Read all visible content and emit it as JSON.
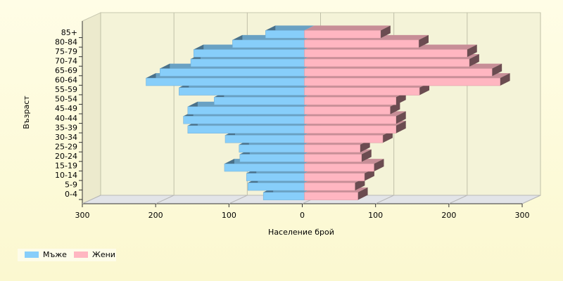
{
  "chart_data": {
    "type": "pyramid",
    "y_label": "Възраст",
    "x_label": "Население брой",
    "categories": [
      "0-4",
      "5-9",
      "10-14",
      "15-19",
      "20-24",
      "25-29",
      "30-34",
      "35-39",
      "40-44",
      "45-49",
      "50-54",
      "55-59",
      "60-64",
      "65-69",
      "70-74",
      "75-79",
      "80-84",
      "85+"
    ],
    "series": [
      {
        "name": "Мъже",
        "color": "#87cefa",
        "values": [
          -56,
          -77,
          -79,
          -109,
          -88,
          -89,
          -108,
          -159,
          -165,
          -159,
          -123,
          -171,
          -216,
          -197,
          -155,
          -151,
          -98,
          -53
        ]
      },
      {
        "name": "Жени",
        "color": "#ffb6c1",
        "values": [
          73,
          69,
          82,
          95,
          78,
          76,
          107,
          125,
          125,
          117,
          125,
          157,
          267,
          256,
          225,
          222,
          156,
          104
        ]
      }
    ],
    "xlim": [
      -300,
      300
    ],
    "xticks": [
      {
        "value": -300,
        "label": "300"
      },
      {
        "value": -200,
        "label": "200"
      },
      {
        "value": -100,
        "label": "100"
      },
      0,
      100,
      200,
      300
    ],
    "grid": true,
    "legend": "bottom-left"
  }
}
